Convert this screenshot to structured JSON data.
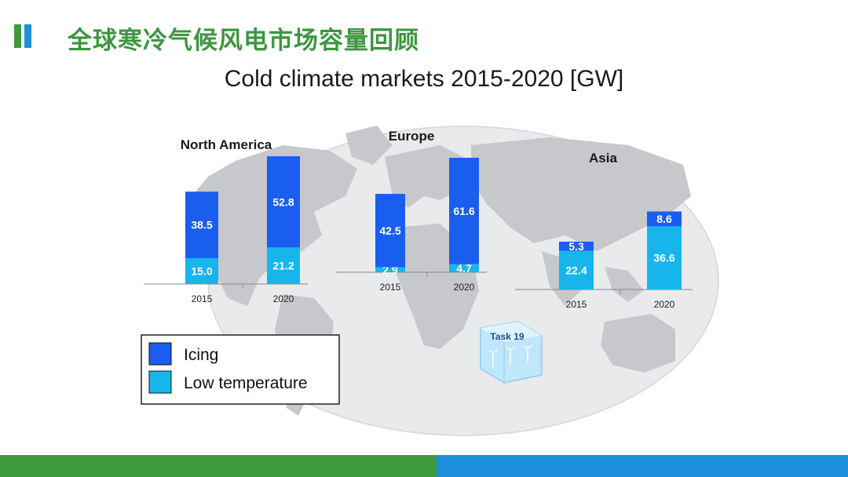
{
  "slide": {
    "title": "全球寒冷气候风电市场容量回顾"
  },
  "colors": {
    "icing": "#1a5ef0",
    "low_temperature": "#17b5ec",
    "title_green": "#3d9640",
    "footer_green": "#3c9a3c",
    "footer_blue": "#1b8fdc"
  },
  "chart_data": {
    "type": "bar",
    "stacked": true,
    "title": "Cold climate markets 2015-2020 [GW]",
    "legend": {
      "placement": "bottom-left",
      "entries": [
        "Icing",
        "Low temperature"
      ]
    },
    "regions": [
      {
        "name": "North America",
        "categories": [
          "2015",
          "2020"
        ],
        "series": [
          {
            "name": "Low temperature",
            "values": [
              15.0,
              21.2
            ]
          },
          {
            "name": "Icing",
            "values": [
              38.5,
              52.8
            ]
          }
        ],
        "labels": {
          "Low temperature": [
            "15.0",
            "21.2"
          ],
          "Icing": [
            "38.5",
            "52.8"
          ]
        }
      },
      {
        "name": "Europe",
        "categories": [
          "2015",
          "2020"
        ],
        "series": [
          {
            "name": "Low temperature",
            "values": [
              2.9,
              4.7
            ]
          },
          {
            "name": "Icing",
            "values": [
              42.5,
              61.6
            ]
          }
        ],
        "labels": {
          "Low temperature": [
            "2.9",
            "4.7"
          ],
          "Icing": [
            "42.5",
            "61.6"
          ]
        }
      },
      {
        "name": "Asia",
        "categories": [
          "2015",
          "2020"
        ],
        "series": [
          {
            "name": "Low temperature",
            "values": [
              22.4,
              36.6
            ]
          },
          {
            "name": "Icing",
            "values": [
              5.3,
              8.6
            ]
          }
        ],
        "labels": {
          "Low temperature": [
            "22.4",
            "36.6"
          ],
          "Icing": [
            "5.3",
            "8.6"
          ]
        }
      }
    ],
    "badge": "Task 19"
  }
}
